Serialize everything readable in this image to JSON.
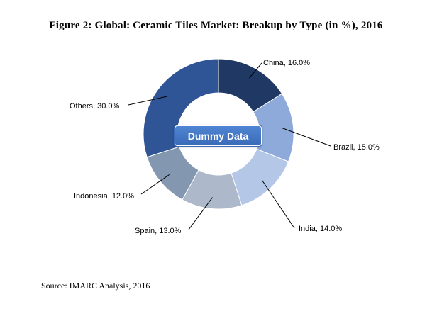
{
  "title": "Figure 2: Global: Ceramic Tiles Market: Breakup by Type (in %), 2016",
  "watermark": "Dummy Data",
  "source": "Source: IMARC Analysis, 2016",
  "chart_data": {
    "type": "pie",
    "variant": "donut",
    "title": "Figure 2: Global: Ceramic Tiles Market: Breakup by Type (in %), 2016",
    "unit": "%",
    "slices": [
      {
        "label": "China",
        "value": 16.0,
        "display": "China, 16.0%",
        "color": "#1f3864"
      },
      {
        "label": "Brazil",
        "value": 15.0,
        "display": "Brazil, 15.0%",
        "color": "#8eaadb"
      },
      {
        "label": "India",
        "value": 14.0,
        "display": "India, 14.0%",
        "color": "#b4c7e7"
      },
      {
        "label": "Spain",
        "value": 13.0,
        "display": "Spain, 13.0%",
        "color": "#adb9ca"
      },
      {
        "label": "Indonesia",
        "value": 12.0,
        "display": "Indonesia, 12.0%",
        "color": "#8497b0"
      },
      {
        "label": "Others",
        "value": 30.0,
        "display": "Others, 30.0%",
        "color": "#2f5597"
      }
    ]
  }
}
